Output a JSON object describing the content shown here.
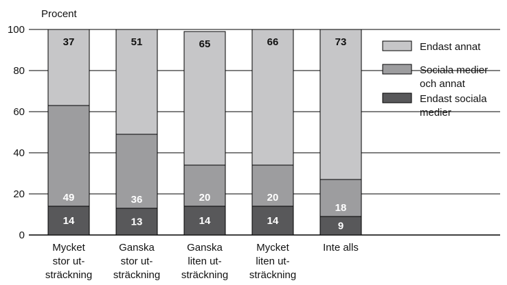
{
  "chart_data": {
    "type": "bar",
    "stacked": true,
    "y_unit_label": "Procent",
    "ylim": [
      0,
      100
    ],
    "yticks": [
      0,
      20,
      40,
      60,
      80,
      100
    ],
    "grid": true,
    "legend_position": "right",
    "categories": [
      [
        "Mycket",
        "stor ut-",
        "sträckning"
      ],
      [
        "Ganska",
        "stor ut-",
        "sträckning"
      ],
      [
        "Ganska",
        "liten ut-",
        "sträckning"
      ],
      [
        "Mycket",
        "liten ut-",
        "sträckning"
      ],
      [
        "Inte alls"
      ]
    ],
    "series": [
      {
        "name": "Endast sociala medier",
        "color": "#58585a",
        "label_color": "#ffffff",
        "values": [
          14,
          13,
          14,
          14,
          9
        ]
      },
      {
        "name": "Sociala medier och annat",
        "color": "#9d9d9f",
        "label_color": "#ffffff",
        "values": [
          49,
          36,
          20,
          20,
          18
        ]
      },
      {
        "name": "Endast annat",
        "color": "#c6c6c8",
        "label_color": "#111111",
        "values": [
          37,
          51,
          65,
          66,
          73
        ]
      }
    ],
    "legend": [
      {
        "name_lines": [
          "Endast annat"
        ],
        "color": "#c6c6c8"
      },
      {
        "name_lines": [
          "Sociala medier",
          "och annat"
        ],
        "color": "#9d9d9f"
      },
      {
        "name_lines": [
          "Endast sociala",
          "medier"
        ],
        "color": "#58585a"
      }
    ]
  }
}
